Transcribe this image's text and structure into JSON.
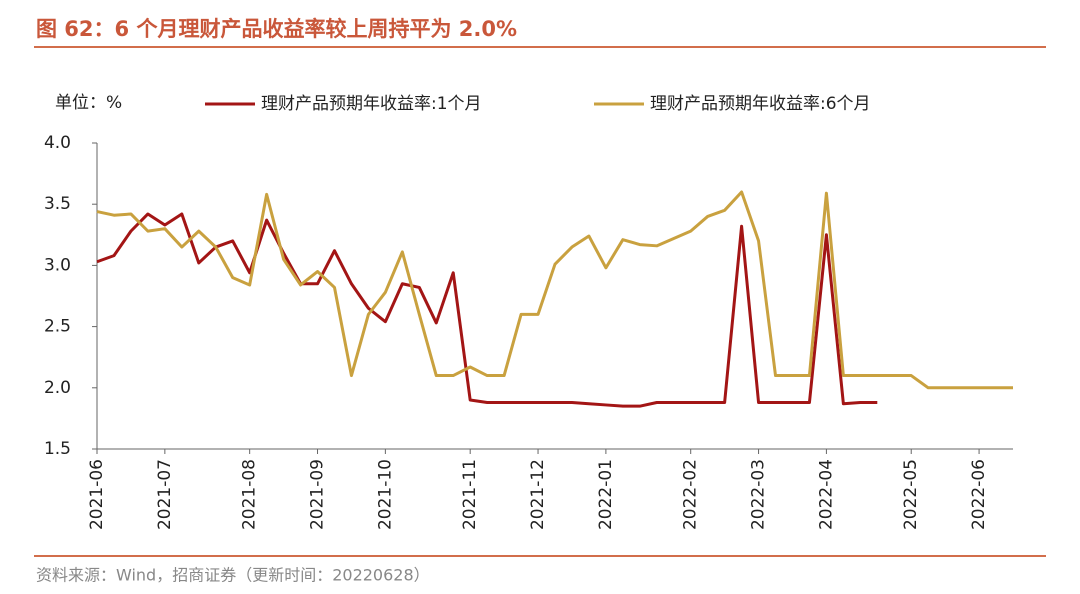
{
  "chart_data": {
    "type": "line",
    "title": "图 62：6 个月理财产品收益率较上周持平为 2.0%",
    "y_label": "单位：%",
    "source": "资料来源：Wind，招商证券（更新时间：20220628）",
    "categories": [
      "2021-06",
      null,
      null,
      null,
      "2021-07",
      null,
      null,
      null,
      null,
      "2021-08",
      null,
      null,
      null,
      "2021-09",
      null,
      null,
      null,
      "2021-10",
      null,
      null,
      null,
      null,
      "2021-11",
      null,
      null,
      null,
      "2021-12",
      null,
      null,
      null,
      "2022-01",
      null,
      null,
      null,
      null,
      "2022-02",
      null,
      null,
      null,
      "2022-03",
      null,
      null,
      null,
      "2022-04",
      null,
      null,
      null,
      null,
      "2022-05",
      null,
      null,
      null,
      "2022-06",
      null,
      null
    ],
    "series": [
      {
        "name": "理财产品预期年收益率:1个月",
        "color": "#a31515",
        "values": [
          3.03,
          3.08,
          3.28,
          3.42,
          3.33,
          3.42,
          3.02,
          3.15,
          3.2,
          2.94,
          3.37,
          3.1,
          2.85,
          2.85,
          3.12,
          2.85,
          2.65,
          2.54,
          2.85,
          2.82,
          2.53,
          2.94,
          1.9,
          1.88,
          1.88,
          1.88,
          1.88,
          1.88,
          1.88,
          1.87,
          1.86,
          1.85,
          1.85,
          1.88,
          1.88,
          1.88,
          1.88,
          1.88,
          3.32,
          1.88,
          1.88,
          1.88,
          1.88,
          3.25,
          1.87,
          1.88,
          1.88,
          null,
          null,
          null,
          null,
          null,
          null,
          null,
          null
        ]
      },
      {
        "name": "理财产品预期年收益率:6个月",
        "color": "#c9a13f",
        "values": [
          3.44,
          3.41,
          3.42,
          3.28,
          3.3,
          3.15,
          3.28,
          3.15,
          2.9,
          2.84,
          3.58,
          3.05,
          2.84,
          2.95,
          2.82,
          2.1,
          2.6,
          2.78,
          3.11,
          2.6,
          2.1,
          2.1,
          2.17,
          2.1,
          2.1,
          2.6,
          2.6,
          3.01,
          3.15,
          3.24,
          2.98,
          3.21,
          3.17,
          3.16,
          3.22,
          3.28,
          3.4,
          3.45,
          3.6,
          3.2,
          2.1,
          2.1,
          2.1,
          3.59,
          2.1,
          2.1,
          2.1,
          2.1,
          2.1,
          2.0,
          2.0,
          2.0,
          2.0,
          2.0,
          2.0
        ]
      }
    ],
    "ylim": [
      1.5,
      4
    ],
    "yticks": [
      {
        "value": 1.5,
        "label": "1.5"
      },
      {
        "value": 2,
        "label": "2.0"
      },
      {
        "value": 2.5,
        "label": "2.5"
      },
      {
        "value": 3,
        "label": "3.0"
      },
      {
        "value": 3.5,
        "label": "3.5"
      },
      {
        "value": 4,
        "label": "4.0"
      }
    ],
    "grid": false,
    "legend": "top"
  }
}
